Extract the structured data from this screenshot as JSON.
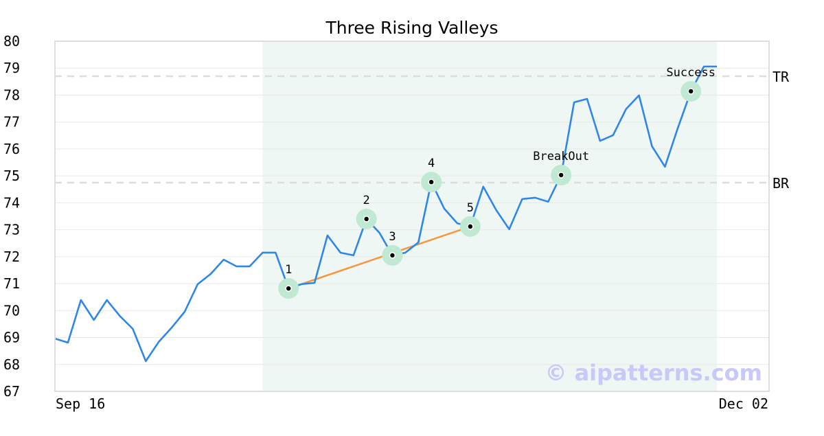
{
  "chart_data": {
    "type": "line",
    "title": "Three Rising Valleys",
    "xlabel": "",
    "ylabel": "",
    "ylim": [
      67,
      80
    ],
    "yticks": [
      67,
      68,
      69,
      70,
      71,
      72,
      73,
      74,
      75,
      76,
      77,
      78,
      79,
      80
    ],
    "xtick_labels": [
      "Sep 16",
      "Dec 02"
    ],
    "grid": true,
    "series": [
      {
        "name": "price",
        "color": "#2e86e8",
        "values": [
          68.96,
          68.81,
          70.39,
          69.65,
          70.39,
          69.8,
          69.32,
          68.12,
          68.84,
          69.37,
          69.96,
          70.98,
          71.36,
          71.89,
          71.64,
          71.64,
          72.15,
          72.15,
          70.82,
          70.98,
          71.03,
          72.79,
          72.15,
          72.05,
          73.4,
          72.89,
          72.05,
          72.15,
          72.53,
          74.77,
          73.78,
          73.24,
          73.12,
          74.6,
          73.73,
          73.02,
          74.14,
          74.19,
          74.04,
          75.03,
          77.73,
          77.86,
          76.3,
          76.51,
          77.48,
          77.99,
          76.1,
          75.34,
          76.79,
          78.14,
          79.06,
          79.06
        ]
      }
    ],
    "shaded_range": [
      16,
      51
    ],
    "shade_color": "#eef7f3",
    "levels": [
      {
        "label": "TR",
        "value": 78.7
      },
      {
        "label": "BR",
        "value": 74.75
      }
    ],
    "trendline": {
      "from_index": 18,
      "to_index": 32,
      "color": "#f7963a"
    },
    "markers": [
      {
        "label": "1",
        "index": 18
      },
      {
        "label": "2",
        "index": 24
      },
      {
        "label": "3",
        "index": 26
      },
      {
        "label": "4",
        "index": 29
      },
      {
        "label": "5",
        "index": 32
      },
      {
        "label": "BreakOut",
        "index": 39
      },
      {
        "label": "Success",
        "index": 49
      }
    ],
    "watermark": "© aipatterns.com"
  }
}
